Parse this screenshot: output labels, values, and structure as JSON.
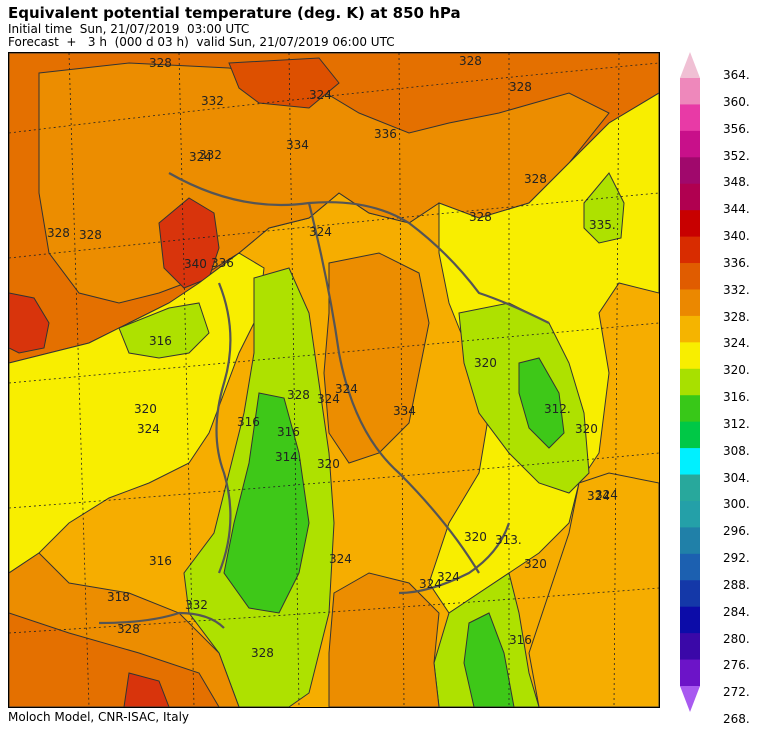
{
  "header": {
    "title": "Equivalent potential temperature (deg. K) at 850 hPa",
    "initial_time": "Initial time  Sun, 21/07/2019  03:00 UTC",
    "forecast": "Forecast  +   3 h  (000 d 03 h)  valid Sun, 21/07/2019 06:00 UTC"
  },
  "footer": "Moloch Model, CNR-ISAC, Italy",
  "colorbar": {
    "labels": [
      "364.",
      "360.",
      "356.",
      "352.",
      "348.",
      "344.",
      "340.",
      "336.",
      "332.",
      "328.",
      "324.",
      "320.",
      "316.",
      "312.",
      "308.",
      "304.",
      "300.",
      "296.",
      "292.",
      "288.",
      "284.",
      "280.",
      "276.",
      "272.",
      "268."
    ],
    "colors": [
      "#f0c0d4",
      "#ee88bb",
      "#e83aa6",
      "#c8108a",
      "#a0086c",
      "#b00050",
      "#c80000",
      "#d82c00",
      "#e05c00",
      "#eb8800",
      "#f5b400",
      "#f8ee00",
      "#a8e000",
      "#38c818",
      "#00c846",
      "#00f0ff",
      "#28a89c",
      "#24a0a8",
      "#2080a8",
      "#1c60b0",
      "#1438a8",
      "#0c0ca8",
      "#3a08a8",
      "#6c14c8",
      "#a85af0"
    ]
  },
  "map": {
    "contour_labels": [
      "328",
      "332",
      "332",
      "328",
      "328",
      "324",
      "324",
      "328",
      "328",
      "328",
      "316",
      "320",
      "324",
      "316",
      "316",
      "314.",
      "320",
      "328",
      "324",
      "324",
      "320",
      "312.",
      "320",
      "324",
      "324",
      "318",
      "316",
      "332",
      "328",
      "328",
      "324",
      "320",
      "324",
      "324",
      "313.",
      "316",
      "320",
      "335.",
      "336",
      "334",
      "336",
      "340",
      "324",
      "328",
      "334"
    ]
  }
}
